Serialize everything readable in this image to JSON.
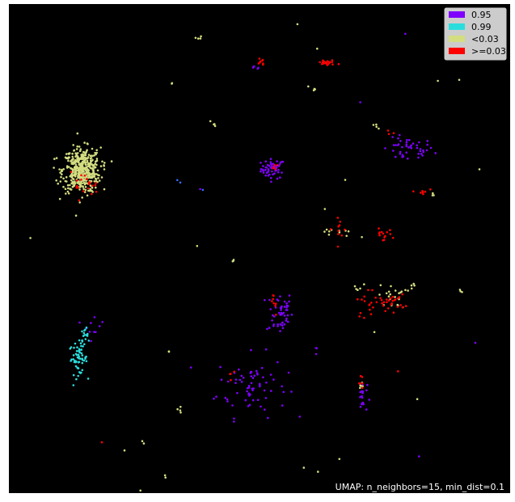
{
  "chart_data": {
    "type": "scatter",
    "title": "",
    "xlabel": "",
    "ylabel": "",
    "xlim": [
      0,
      100
    ],
    "ylim": [
      0,
      100
    ],
    "grid": false,
    "background": "#000000",
    "legend_placement": "top-right",
    "annotation": "UMAP: n_neighbors=15, min_dist=0.1",
    "series": [
      {
        "name": "0.95",
        "color": "#7f00ff",
        "clusters": [
          {
            "cx": 52.7,
            "cy": 66.3,
            "sx": 1.2,
            "sy": 1.0,
            "n": 55
          },
          {
            "cx": 79.6,
            "cy": 70.2,
            "sx": 2.6,
            "sy": 1.2,
            "n": 45
          },
          {
            "cx": 54.0,
            "cy": 37.0,
            "sx": 1.3,
            "sy": 2.3,
            "n": 50
          },
          {
            "cx": 48.5,
            "cy": 22.0,
            "sx": 3.5,
            "sy": 3.2,
            "n": 70
          },
          {
            "cx": 70.5,
            "cy": 19.5,
            "sx": 0.5,
            "sy": 1.5,
            "n": 18
          },
          {
            "cx": 49.3,
            "cy": 87.5,
            "sx": 0.4,
            "sy": 0.6,
            "n": 5
          },
          {
            "cx": 17.0,
            "cy": 34.5,
            "sx": 1.0,
            "sy": 1.6,
            "n": 10
          },
          {
            "cx": 61.5,
            "cy": 29.0,
            "sx": 0.5,
            "sy": 0.4,
            "n": 3
          },
          {
            "cx": 79.0,
            "cy": 94.0,
            "sx": 0.2,
            "sy": 0.2,
            "n": 1
          },
          {
            "cx": 70.5,
            "cy": 80.0,
            "sx": 0.2,
            "sy": 0.2,
            "n": 1
          },
          {
            "cx": 93.2,
            "cy": 30.5,
            "sx": 0.2,
            "sy": 0.2,
            "n": 1
          },
          {
            "cx": 82.0,
            "cy": 7.5,
            "sx": 0.2,
            "sy": 0.2,
            "n": 1
          },
          {
            "cx": 37.8,
            "cy": 62.0,
            "sx": 0.2,
            "sy": 0.2,
            "n": 1
          }
        ]
      },
      {
        "name": "0.99",
        "color": "#2adddd",
        "clusters": [
          {
            "cx": 13.8,
            "cy": 27.5,
            "sx": 0.9,
            "sy": 1.6,
            "n": 55
          },
          {
            "cx": 15.3,
            "cy": 31.5,
            "sx": 0.6,
            "sy": 1.2,
            "n": 18
          }
        ]
      },
      {
        "name": "<0.03",
        "color": "#d4dd80",
        "clusters": [
          {
            "cx": 14.5,
            "cy": 66.0,
            "sx": 1.9,
            "sy": 2.3,
            "n": 450
          },
          {
            "cx": 76.5,
            "cy": 40.2,
            "sx": 1.4,
            "sy": 1.2,
            "n": 22
          },
          {
            "cx": 65.5,
            "cy": 53.5,
            "sx": 1.3,
            "sy": 0.7,
            "n": 10
          },
          {
            "cx": 73.0,
            "cy": 74.8,
            "sx": 0.4,
            "sy": 0.4,
            "n": 4
          },
          {
            "cx": 60.5,
            "cy": 83.0,
            "sx": 0.4,
            "sy": 0.4,
            "n": 4
          },
          {
            "cx": 70.0,
            "cy": 42.0,
            "sx": 0.6,
            "sy": 0.5,
            "n": 5
          },
          {
            "cx": 80.5,
            "cy": 42.5,
            "sx": 0.3,
            "sy": 0.3,
            "n": 4
          },
          {
            "cx": 84.5,
            "cy": 61.0,
            "sx": 0.3,
            "sy": 0.3,
            "n": 3
          },
          {
            "cx": 37.9,
            "cy": 93.0,
            "sx": 0.3,
            "sy": 0.2,
            "n": 4
          },
          {
            "cx": 40.8,
            "cy": 75.5,
            "sx": 0.3,
            "sy": 0.4,
            "n": 5
          },
          {
            "cx": 44.7,
            "cy": 47.5,
            "sx": 0.3,
            "sy": 0.2,
            "n": 3
          },
          {
            "cx": 34.0,
            "cy": 17.0,
            "sx": 0.5,
            "sy": 0.6,
            "n": 4
          },
          {
            "cx": 70.3,
            "cy": 21.5,
            "sx": 0.2,
            "sy": 0.5,
            "n": 5
          },
          {
            "cx": 90.2,
            "cy": 41.2,
            "sx": 0.2,
            "sy": 0.4,
            "n": 3
          },
          {
            "cx": 32.6,
            "cy": 84.0,
            "sx": 0.2,
            "sy": 0.2,
            "n": 2
          },
          {
            "cx": 31.9,
            "cy": 29.0,
            "sx": 0.2,
            "sy": 0.2,
            "n": 2
          },
          {
            "cx": 31.2,
            "cy": 3.5,
            "sx": 0.2,
            "sy": 0.2,
            "n": 2
          },
          {
            "cx": 26.8,
            "cy": 10.3,
            "sx": 0.2,
            "sy": 0.2,
            "n": 2
          },
          {
            "cx": 4.5,
            "cy": 52.0,
            "sx": 0.2,
            "sy": 0.2,
            "n": 1
          },
          {
            "cx": 38.0,
            "cy": 50.5,
            "sx": 0.2,
            "sy": 0.2,
            "n": 1
          },
          {
            "cx": 62.8,
            "cy": 58.0,
            "sx": 0.2,
            "sy": 0.2,
            "n": 1
          },
          {
            "cx": 67.0,
            "cy": 64.0,
            "sx": 0.2,
            "sy": 0.2,
            "n": 1
          },
          {
            "cx": 86.0,
            "cy": 84.0,
            "sx": 0.2,
            "sy": 0.2,
            "n": 1
          },
          {
            "cx": 89.5,
            "cy": 84.5,
            "sx": 0.2,
            "sy": 0.2,
            "n": 1
          },
          {
            "cx": 94.0,
            "cy": 66.0,
            "sx": 0.2,
            "sy": 0.2,
            "n": 1
          },
          {
            "cx": 57.7,
            "cy": 95.5,
            "sx": 0.2,
            "sy": 0.2,
            "n": 1
          },
          {
            "cx": 61.5,
            "cy": 91.0,
            "sx": 0.2,
            "sy": 0.2,
            "n": 1
          },
          {
            "cx": 73.0,
            "cy": 33.0,
            "sx": 0.2,
            "sy": 0.2,
            "n": 1
          },
          {
            "cx": 81.5,
            "cy": 19.0,
            "sx": 0.2,
            "sy": 0.2,
            "n": 1
          },
          {
            "cx": 66.0,
            "cy": 7.0,
            "sx": 0.2,
            "sy": 0.2,
            "n": 1
          },
          {
            "cx": 61.5,
            "cy": 4.0,
            "sx": 0.2,
            "sy": 0.2,
            "n": 1
          },
          {
            "cx": 59.0,
            "cy": 5.0,
            "sx": 0.2,
            "sy": 0.2,
            "n": 1
          },
          {
            "cx": 26.5,
            "cy": 0.5,
            "sx": 0.2,
            "sy": 0.2,
            "n": 1
          },
          {
            "cx": 23.0,
            "cy": 8.5,
            "sx": 0.2,
            "sy": 0.2,
            "n": 1
          },
          {
            "cx": 70.5,
            "cy": 52.5,
            "sx": 0.2,
            "sy": 0.2,
            "n": 1
          }
        ]
      },
      {
        "name": ">=0.03",
        "color": "#ff0000",
        "clusters": [
          {
            "cx": 63.5,
            "cy": 88.0,
            "sx": 1.0,
            "sy": 0.3,
            "n": 25
          },
          {
            "cx": 50.3,
            "cy": 88.3,
            "sx": 0.3,
            "sy": 0.5,
            "n": 8
          },
          {
            "cx": 76.0,
            "cy": 39.0,
            "sx": 1.5,
            "sy": 0.8,
            "n": 28
          },
          {
            "cx": 71.5,
            "cy": 39.0,
            "sx": 1.0,
            "sy": 1.5,
            "n": 14
          },
          {
            "cx": 74.5,
            "cy": 52.8,
            "sx": 1.0,
            "sy": 0.6,
            "n": 14
          },
          {
            "cx": 82.5,
            "cy": 61.5,
            "sx": 0.6,
            "sy": 0.5,
            "n": 8
          },
          {
            "cx": 65.5,
            "cy": 54.0,
            "sx": 1.0,
            "sy": 1.5,
            "n": 10
          },
          {
            "cx": 53.0,
            "cy": 39.5,
            "sx": 0.8,
            "sy": 1.5,
            "n": 8
          },
          {
            "cx": 44.5,
            "cy": 25.0,
            "sx": 0.5,
            "sy": 0.6,
            "n": 4
          },
          {
            "cx": 70.4,
            "cy": 22.5,
            "sx": 0.3,
            "sy": 0.8,
            "n": 6
          },
          {
            "cx": 14.8,
            "cy": 63.0,
            "sx": 1.5,
            "sy": 1.2,
            "n": 20
          },
          {
            "cx": 76.5,
            "cy": 73.5,
            "sx": 0.5,
            "sy": 0.4,
            "n": 3
          },
          {
            "cx": 53.0,
            "cy": 66.5,
            "sx": 0.5,
            "sy": 0.4,
            "n": 5
          },
          {
            "cx": 77.5,
            "cy": 25.0,
            "sx": 0.2,
            "sy": 0.2,
            "n": 1
          },
          {
            "cx": 19.0,
            "cy": 10.5,
            "sx": 0.2,
            "sy": 0.2,
            "n": 1
          }
        ]
      }
    ],
    "stray_points": [
      {
        "x": 33.6,
        "y": 64.0,
        "color": "#3b6cff"
      },
      {
        "x": 34.2,
        "y": 63.5,
        "color": "#3b6cff"
      },
      {
        "x": 38.7,
        "y": 62.0,
        "color": "#3b6cff"
      }
    ]
  }
}
